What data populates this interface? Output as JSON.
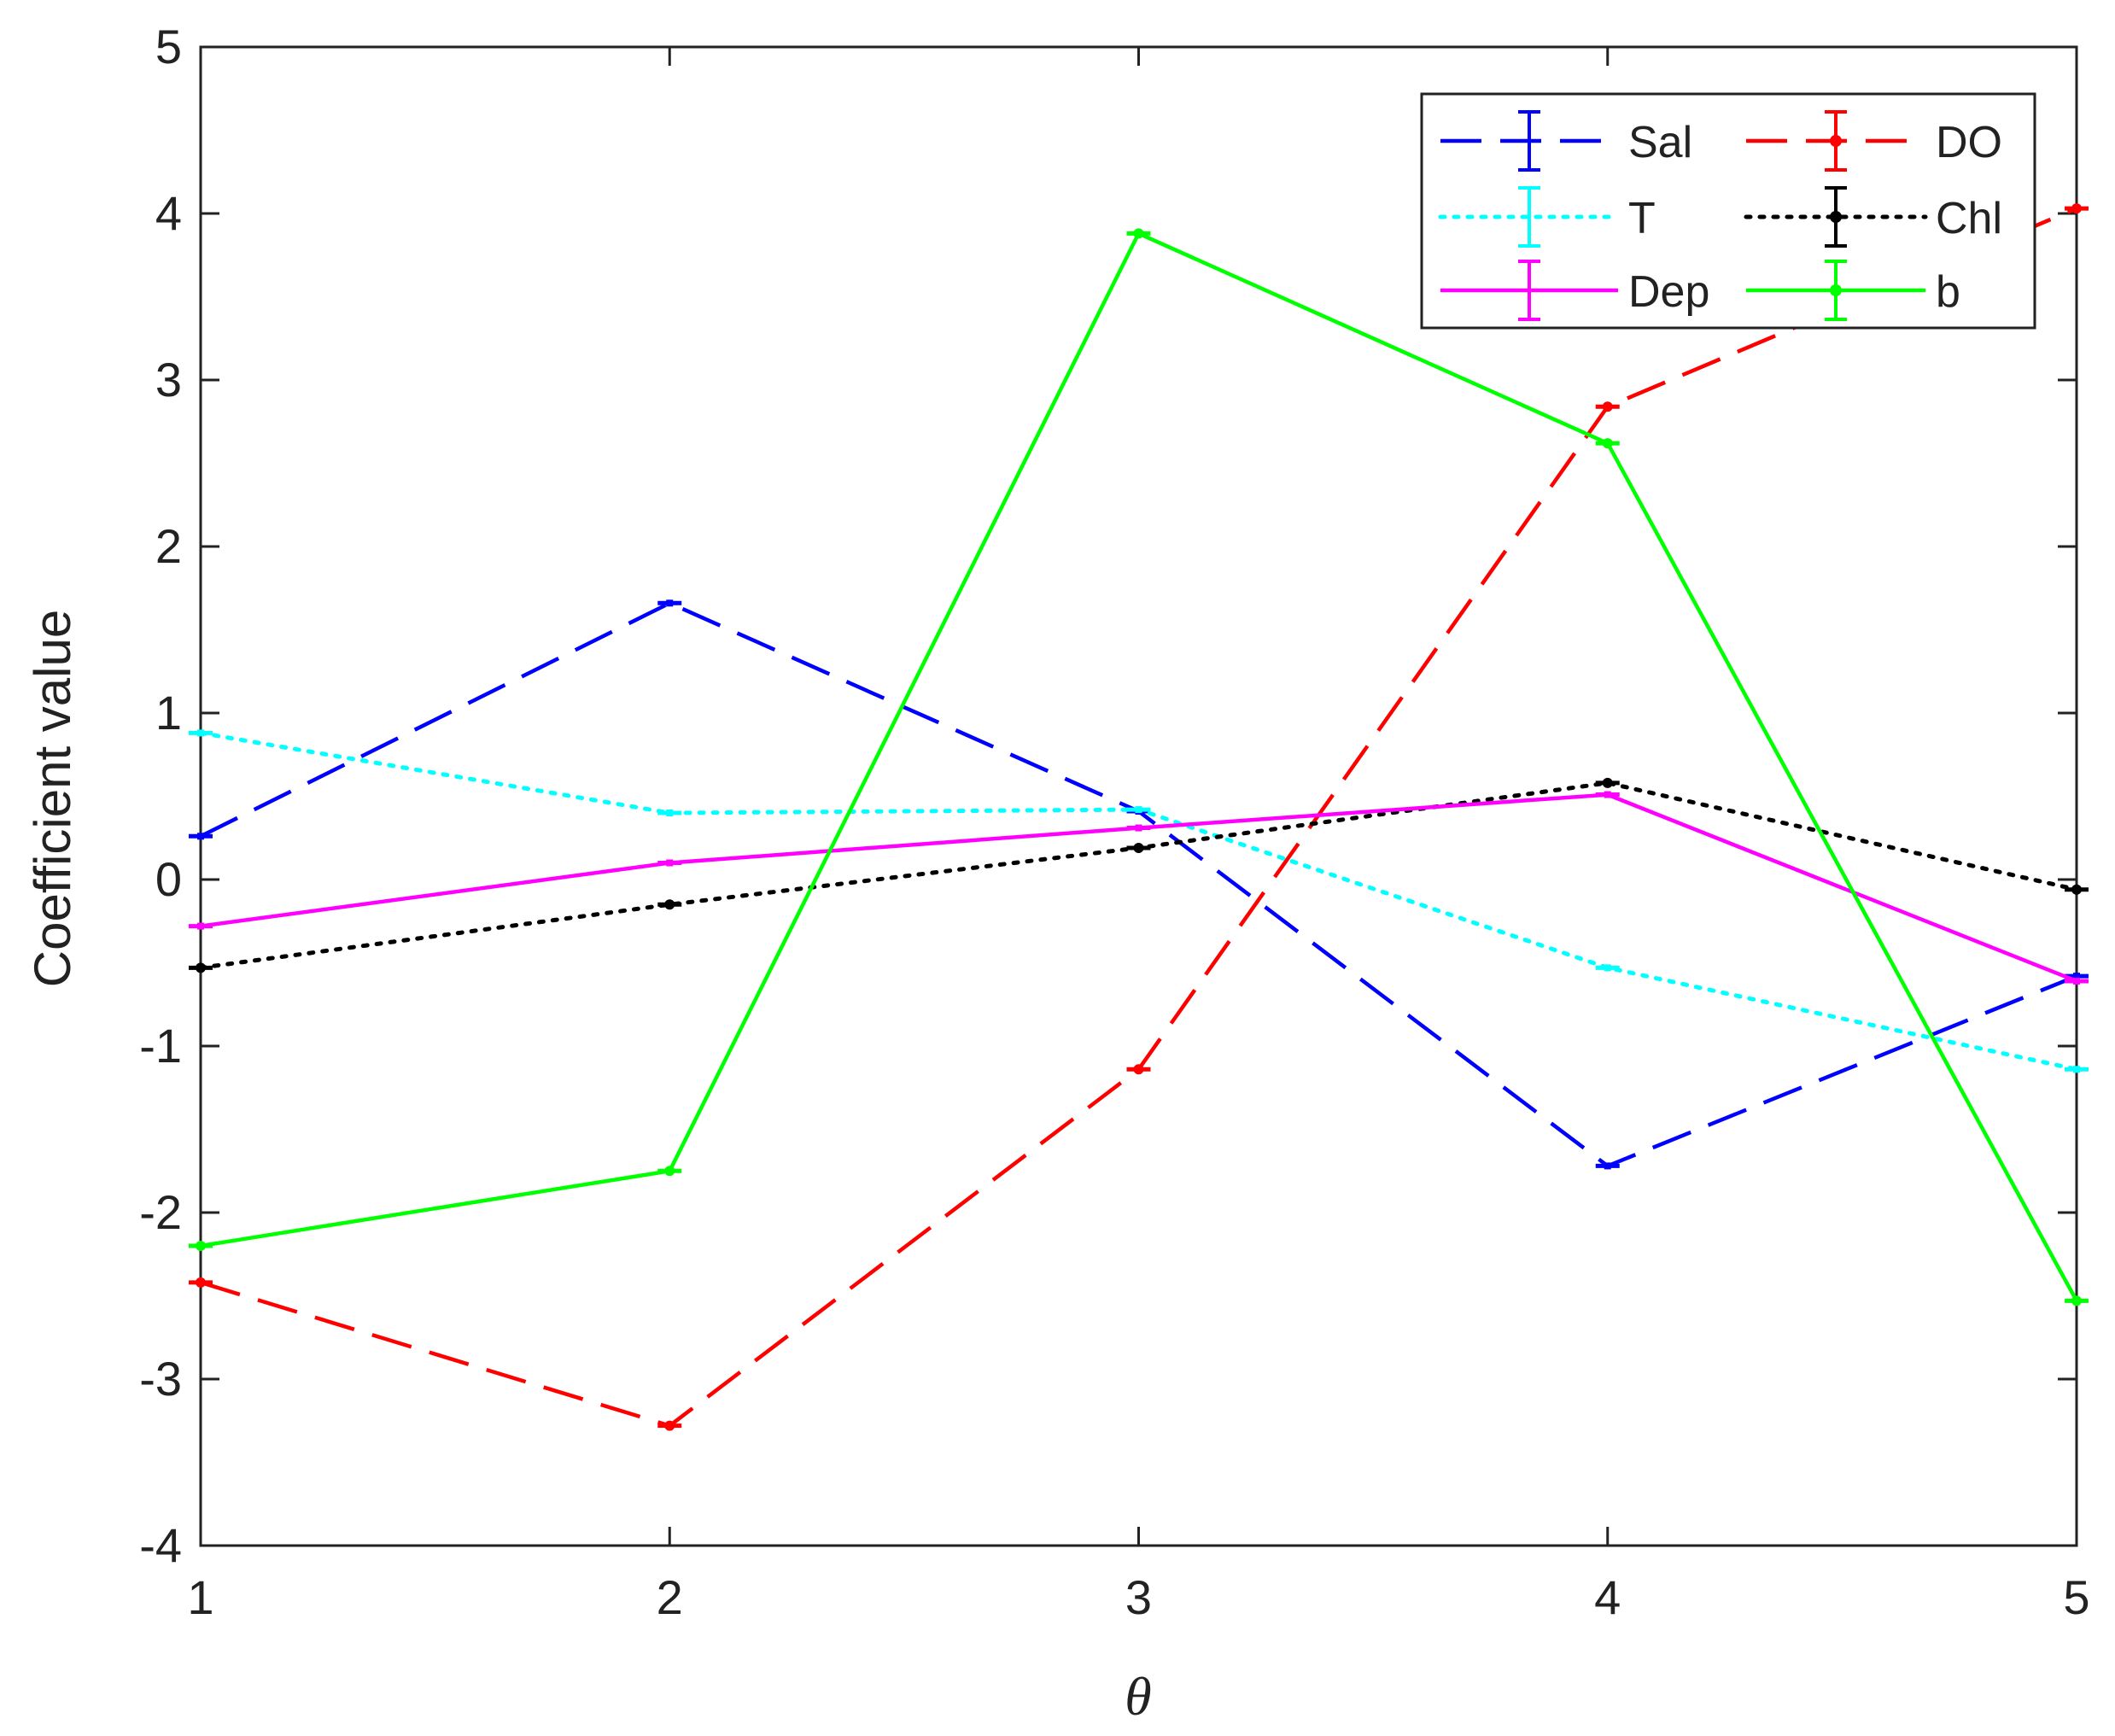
{
  "chart_data": {
    "type": "line",
    "xlabel": "θ",
    "ylabel": "Coefficient value",
    "xlim": [
      1,
      5
    ],
    "ylim": [
      -4,
      5
    ],
    "x": [
      1,
      2,
      3,
      4,
      5
    ],
    "xticks": [
      "1",
      "2",
      "3",
      "4",
      "5"
    ],
    "yticks": [
      "-4",
      "-3",
      "-2",
      "-1",
      "0",
      "1",
      "2",
      "3",
      "4",
      "5"
    ],
    "grid": false,
    "legend_position": "top-right",
    "series": [
      {
        "name": "Sal",
        "color": "#0000ff",
        "style": "dashed",
        "marker": "errorbar",
        "values": [
          0.26,
          1.66,
          0.41,
          -1.72,
          -0.58
        ]
      },
      {
        "name": "DO",
        "color": "#ff0000",
        "style": "dashed",
        "marker": "dot",
        "values": [
          -2.42,
          -3.28,
          -1.14,
          2.84,
          4.03
        ]
      },
      {
        "name": "T",
        "color": "#00ffff",
        "style": "dotted",
        "marker": "errorbar",
        "values": [
          0.88,
          0.4,
          0.42,
          -0.53,
          -1.14
        ]
      },
      {
        "name": "Chl",
        "color": "#000000",
        "style": "dotted",
        "marker": "dot",
        "values": [
          -0.53,
          -0.15,
          0.19,
          0.58,
          -0.06
        ]
      },
      {
        "name": "Dep",
        "color": "#ff00ff",
        "style": "solid",
        "marker": "errorbar",
        "values": [
          -0.28,
          0.1,
          0.31,
          0.51,
          -0.61
        ]
      },
      {
        "name": "b",
        "color": "#00ff00",
        "style": "solid",
        "marker": "dot",
        "values": [
          -2.2,
          -1.75,
          3.88,
          2.62,
          -2.53
        ]
      }
    ]
  }
}
